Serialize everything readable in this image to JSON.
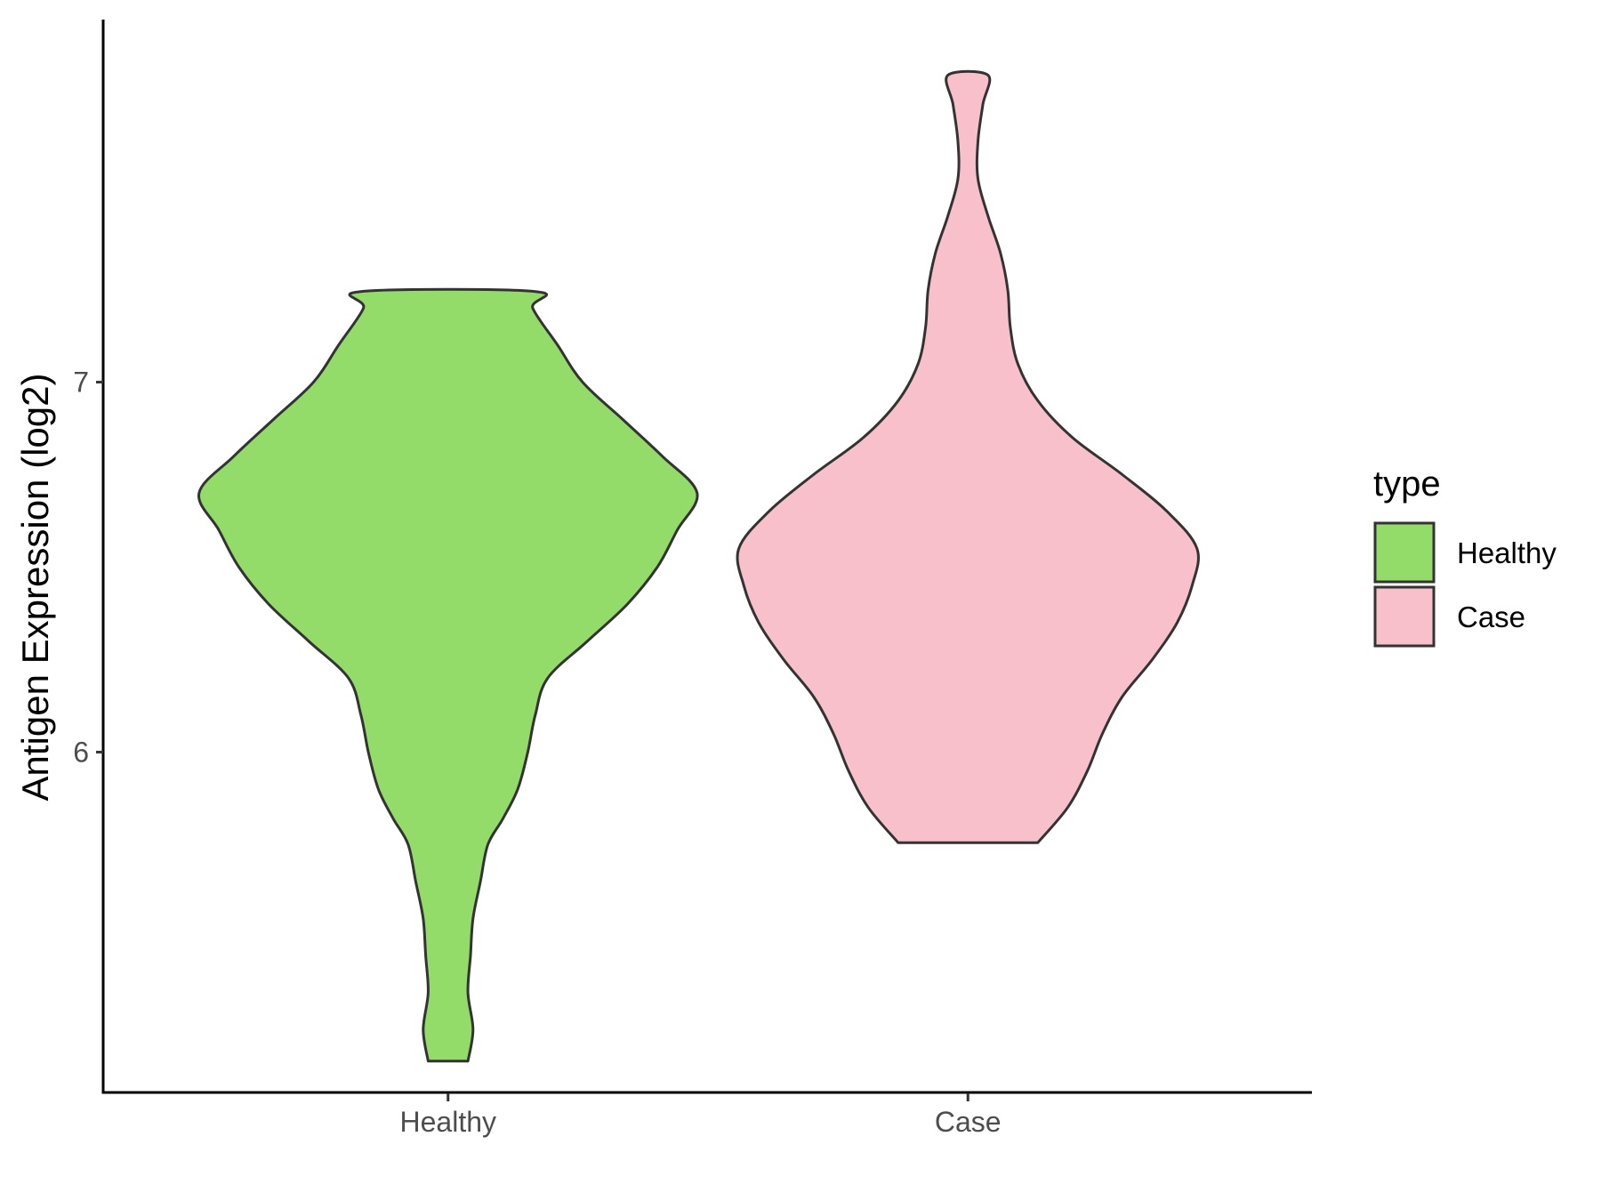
{
  "chart_data": {
    "type": "violin",
    "title": "",
    "xlabel": "",
    "ylabel": "Antigen Expression (log2)",
    "ylim": [
      5.08,
      7.98
    ],
    "yticks": [
      6,
      7
    ],
    "categories": [
      "Healthy",
      "Case"
    ],
    "legend": {
      "title": "type",
      "position": "right",
      "entries": [
        {
          "label": "Healthy",
          "color": "#93DC6A"
        },
        {
          "label": "Case",
          "color": "#F8C0CB"
        }
      ]
    },
    "grid": false,
    "series": [
      {
        "category": "Healthy",
        "color": "#93DC6A",
        "min": 5.165,
        "max": 7.245,
        "density_profile": [
          [
            5.165,
            0.04
          ],
          [
            5.25,
            0.05
          ],
          [
            5.35,
            0.04
          ],
          [
            5.45,
            0.045
          ],
          [
            5.55,
            0.05
          ],
          [
            5.65,
            0.065
          ],
          [
            5.75,
            0.08
          ],
          [
            5.82,
            0.11
          ],
          [
            5.9,
            0.14
          ],
          [
            6.0,
            0.16
          ],
          [
            6.1,
            0.175
          ],
          [
            6.2,
            0.2
          ],
          [
            6.3,
            0.28
          ],
          [
            6.4,
            0.36
          ],
          [
            6.5,
            0.42
          ],
          [
            6.6,
            0.46
          ],
          [
            6.7,
            0.5
          ],
          [
            6.8,
            0.43
          ],
          [
            6.9,
            0.35
          ],
          [
            7.0,
            0.27
          ],
          [
            7.1,
            0.22
          ],
          [
            7.2,
            0.17
          ],
          [
            7.245,
            0.175
          ]
        ]
      },
      {
        "category": "Case",
        "color": "#F8C0CB",
        "min": 5.755,
        "max": 7.83,
        "density_profile": [
          [
            5.755,
            0.14
          ],
          [
            5.85,
            0.2
          ],
          [
            5.95,
            0.24
          ],
          [
            6.05,
            0.27
          ],
          [
            6.15,
            0.31
          ],
          [
            6.25,
            0.37
          ],
          [
            6.35,
            0.42
          ],
          [
            6.45,
            0.45
          ],
          [
            6.55,
            0.46
          ],
          [
            6.65,
            0.4
          ],
          [
            6.75,
            0.31
          ],
          [
            6.85,
            0.21
          ],
          [
            6.95,
            0.14
          ],
          [
            7.05,
            0.1
          ],
          [
            7.15,
            0.085
          ],
          [
            7.25,
            0.08
          ],
          [
            7.35,
            0.065
          ],
          [
            7.45,
            0.04
          ],
          [
            7.55,
            0.02
          ],
          [
            7.65,
            0.02
          ],
          [
            7.75,
            0.03
          ],
          [
            7.83,
            0.04
          ]
        ]
      }
    ]
  }
}
